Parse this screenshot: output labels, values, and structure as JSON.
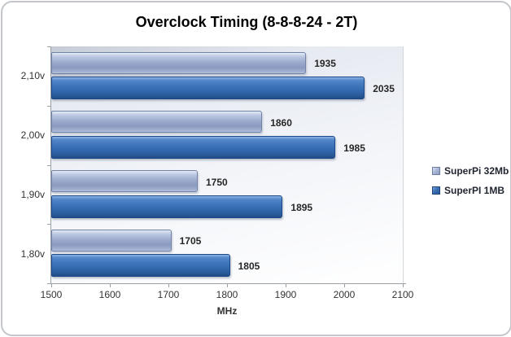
{
  "title": "Overclock Timing (8-8-8-24 - 2T)",
  "chart_data": {
    "type": "bar",
    "orientation": "horizontal",
    "title": "Overclock Timing (8-8-8-24 - 2T)",
    "categories": [
      "2,10v",
      "2,00v",
      "1,90v",
      "1,80v"
    ],
    "series": [
      {
        "name": "SuperPi 32Mb",
        "values": [
          1935,
          1860,
          1750,
          1705
        ],
        "color": "#9aa9cc"
      },
      {
        "name": "SuperPI 1MB",
        "values": [
          2035,
          1985,
          1895,
          1805
        ],
        "color": "#3d73b9"
      }
    ],
    "xlabel": "MHz",
    "ylabel": "",
    "xlim": [
      1500,
      2100
    ],
    "xticks": [
      1500,
      1600,
      1700,
      1800,
      1900,
      2000,
      2100
    ],
    "grid": false,
    "legend_position": "right",
    "data_labels": true
  },
  "colors": {
    "series_light": "#9aa9cc",
    "series_dark": "#3d73b9",
    "plot_bg_top": "#c5cbd5",
    "plot_bg_bottom": "#ffffff",
    "axis_line": "#9aa0a6",
    "text": "#333333",
    "frame_border": "#c3c7cb"
  }
}
